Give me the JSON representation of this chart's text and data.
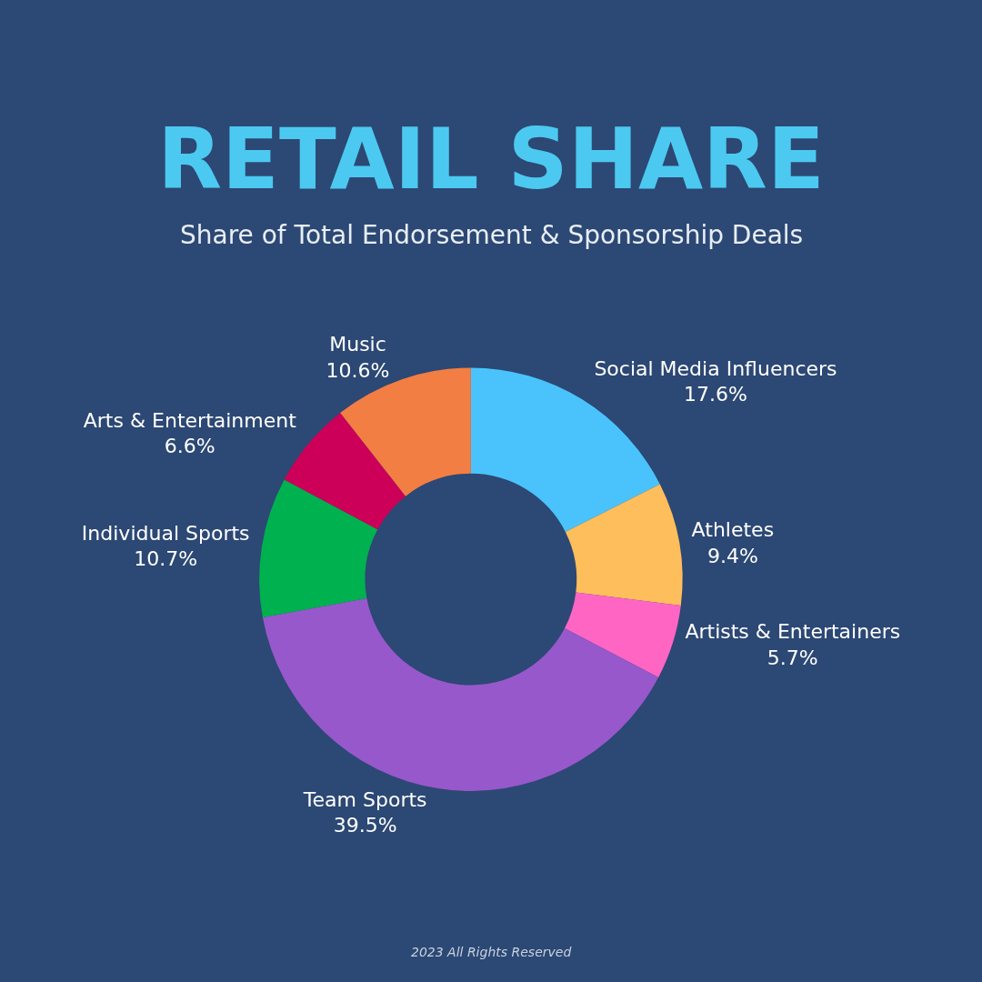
{
  "chart_data": {
    "type": "donut",
    "title": "RETAIL SHARE",
    "subtitle": "Share of Total Endorsement & Sponsorship Deals",
    "categories": [
      "Social Media Influencers",
      "Athletes",
      "Artists & Entertainers",
      "Team Sports",
      "Individual Sports",
      "Arts & Entertainment",
      "Music"
    ],
    "values": [
      17.6,
      9.4,
      5.7,
      39.5,
      10.7,
      6.6,
      10.6
    ],
    "colors": [
      "#4ac3fc",
      "#ffbe5c",
      "#ff66c4",
      "#9758cb",
      "#00b14f",
      "#cc0058",
      "#f27e44"
    ],
    "value_labels": [
      "17.6%",
      "9.4%",
      "5.7%",
      "39.5%",
      "10.7%",
      "6.6%",
      "10.6%"
    ],
    "annotations": [
      "2023 All Rights Reserved"
    ],
    "legend": false
  }
}
